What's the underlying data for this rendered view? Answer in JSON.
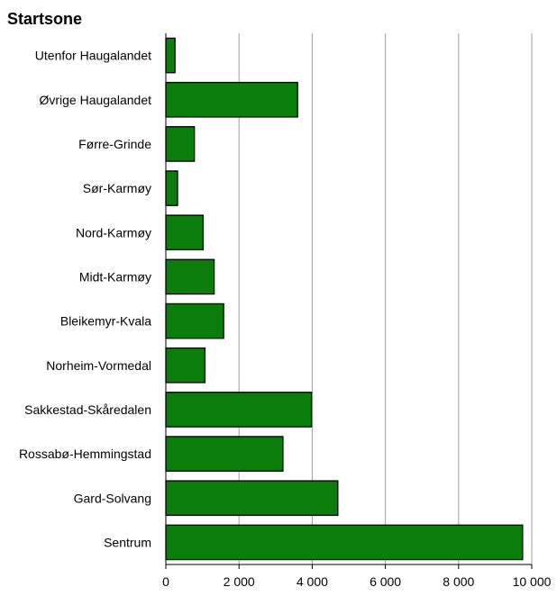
{
  "chart_data": {
    "type": "bar",
    "orientation": "horizontal",
    "title": "Startsone",
    "xlabel": "",
    "ylabel": "",
    "categories": [
      "Utenfor Haugalandet",
      "Øvrige Haugalandet",
      "Førre-Grinde",
      "Sør-Karmøy",
      "Nord-Karmøy",
      "Midt-Karmøy",
      "Bleikemyr-Kvala",
      "Norheim-Vormedal",
      "Sakkestad-Skåredalen",
      "Rossabø-Hemmingstad",
      "Gard-Solvang",
      "Sentrum"
    ],
    "values": [
      250,
      3600,
      780,
      320,
      1020,
      1320,
      1580,
      1070,
      3980,
      3200,
      4700,
      9750
    ],
    "xlim": [
      0,
      10000
    ],
    "xticks": [
      0,
      2000,
      4000,
      6000,
      8000,
      10000
    ],
    "xtick_labels": [
      "0",
      "2 000",
      "4 000",
      "6 000",
      "8 000",
      "10 000"
    ],
    "grid": "vertical",
    "legend": "none",
    "colors": {
      "bar_fill": "#0a7d0a",
      "bar_stroke": "#000000",
      "grid": "#a0a0a0",
      "axis": "#000000"
    }
  }
}
